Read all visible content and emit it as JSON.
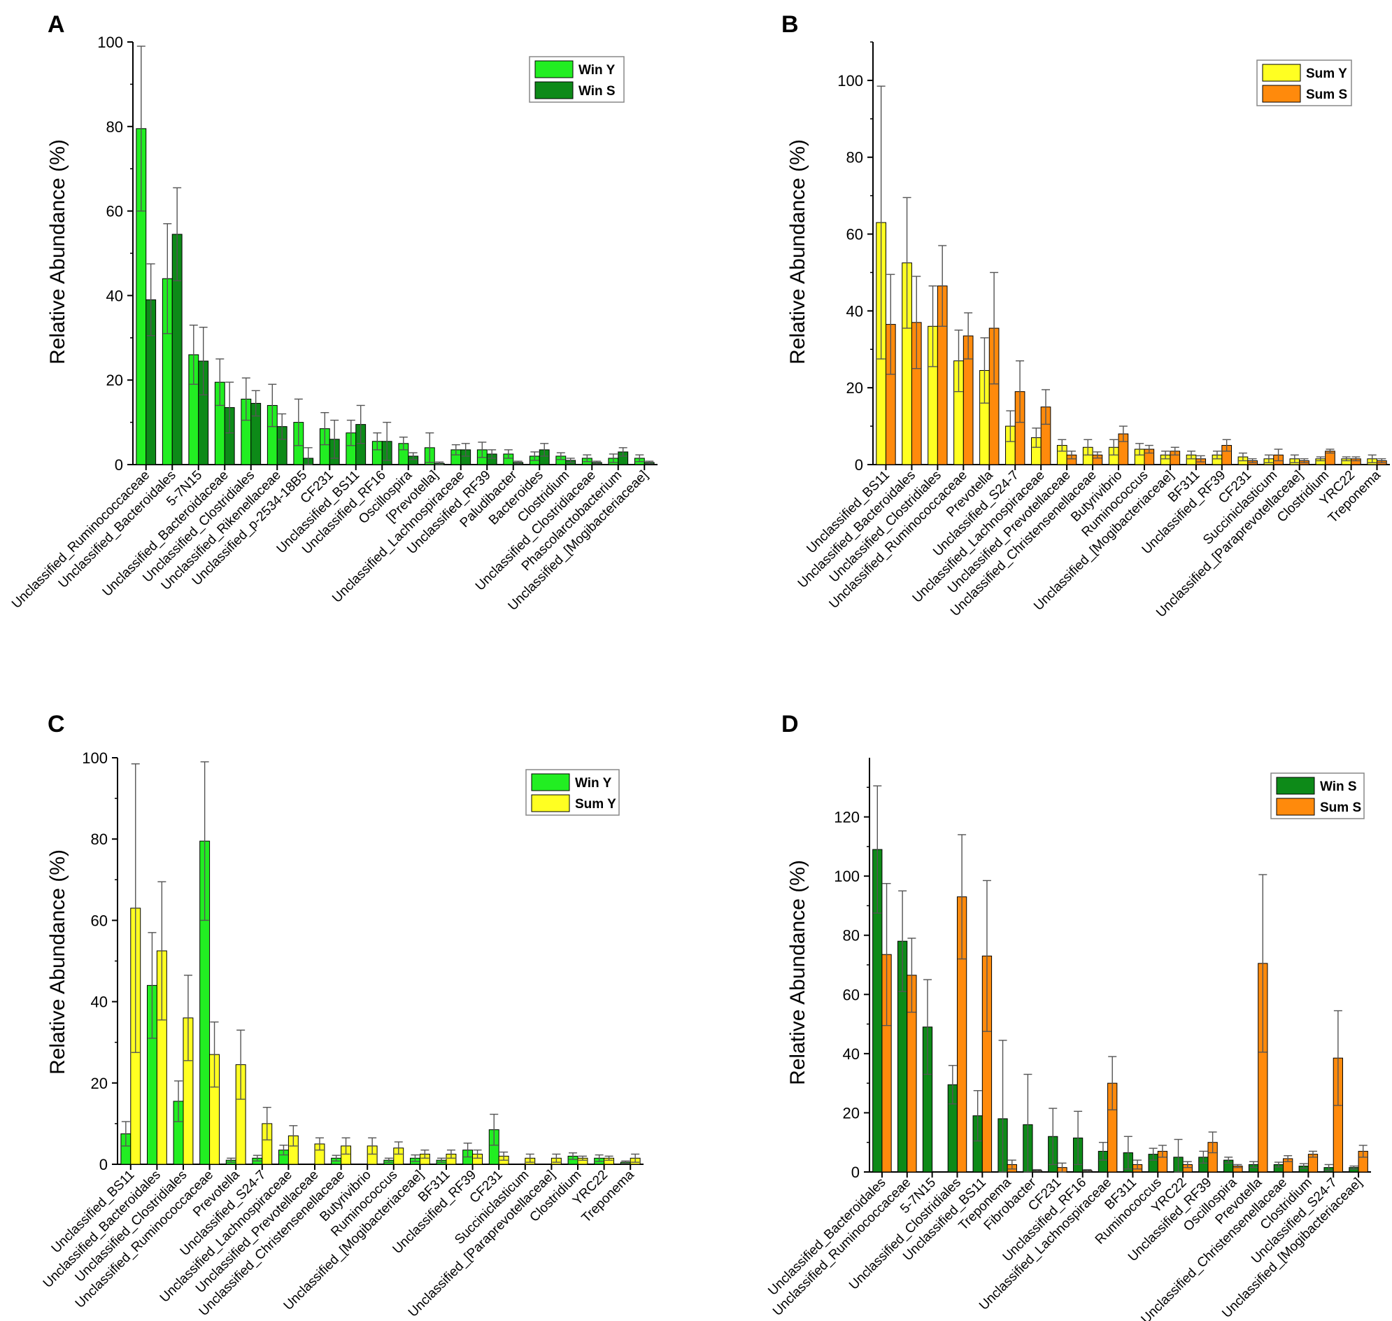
{
  "colors": {
    "win_y": "#22ee22",
    "win_s": "#0d8a18",
    "sum_y": "#ffff22",
    "sum_s": "#ff8a0c",
    "axis": "#000000",
    "error": "#555555"
  },
  "chart_data": [
    {
      "panel": "A",
      "type": "bar",
      "ylabel": "Relative Abundance (%)",
      "ylim": [
        0,
        100
      ],
      "yticks": [
        0,
        20,
        40,
        60,
        80,
        100
      ],
      "legend_position": "top-right",
      "categories": [
        "Unclassified_Ruminococcaceae",
        "Unclassified_Bacteroidales",
        "5-7N15",
        "Unclassified_Bacteroidaceae",
        "Unclassified_Clostridiales",
        "Unclassified_Rikenellaceae",
        "Unclassified_p-2534-18B5",
        "CF231",
        "Unclassified_BS11",
        "Unclassified_RF16",
        "Oscillospira",
        "[Prevotella]",
        "Unclassified_Lachnospiraceae",
        "Unclassified_RF39",
        "Paludibacter",
        "Bacteroides",
        "Clostridium",
        "Unclassified_Clostridiaceae",
        "Phascolarctobacterium",
        "Unclassified_[Mogibacteriaceae]"
      ],
      "series": [
        {
          "name": "Win Y",
          "color_key": "win_y",
          "values": [
            79.5,
            44,
            26,
            19.5,
            15.5,
            14,
            10,
            8.5,
            7.5,
            5.5,
            5,
            4,
            3.5,
            3.5,
            2.5,
            2,
            2,
            1.5,
            1.5,
            1.5
          ],
          "errors": [
            19.5,
            13,
            7,
            5.5,
            5,
            5,
            5.5,
            3.8,
            3,
            2,
            1.5,
            3.5,
            1.2,
            1.8,
            1,
            1,
            0.8,
            0.8,
            1,
            0.8
          ]
        },
        {
          "name": "Win S",
          "color_key": "win_s",
          "values": [
            39,
            54.5,
            24.5,
            13.5,
            14.5,
            9,
            1.5,
            6,
            9.5,
            5.5,
            2,
            0.3,
            3.5,
            2.5,
            0.5,
            3.5,
            1,
            0.5,
            3,
            0.5
          ],
          "errors": [
            8.5,
            11,
            8,
            6,
            3,
            3,
            2.5,
            4.5,
            4.5,
            4.5,
            0.8,
            0.3,
            1.5,
            1,
            0.3,
            1.5,
            0.5,
            0.3,
            1,
            0.3
          ]
        }
      ]
    },
    {
      "panel": "B",
      "type": "bar",
      "ylabel": "Relative Abundance (%)",
      "ylim": [
        0,
        110
      ],
      "yticks": [
        0,
        20,
        40,
        60,
        80,
        100
      ],
      "legend_position": "top-right",
      "categories": [
        "Unclassified_BS11",
        "Unclassified_Bacteroidales",
        "Unclassified_Clostridiales",
        "Unclassified_Ruminococcaceae",
        "Prevotella",
        "Unclassified_S24-7",
        "Unclassified_Lachnospiraceae",
        "Unclassified_Prevotellaceae",
        "Unclassified_Christensenellaceae",
        "Butyrivibrio",
        "Ruminococcus",
        "Unclassified_[Mogibacteriaceae]",
        "BF311",
        "Unclassified_RF39",
        "CF231",
        "Succiniclasticum",
        "Unclassified_[Paraprevotellaceae]",
        "Clostridium",
        "YRC22",
        "Treponema"
      ],
      "series": [
        {
          "name": "Sum Y",
          "color_key": "sum_y",
          "values": [
            63,
            52.5,
            36,
            27,
            24.5,
            10,
            7,
            5,
            4.5,
            4.5,
            4,
            2.5,
            2.5,
            2.5,
            2,
            1.5,
            1.5,
            1.5,
            1.5,
            1.5
          ],
          "errors": [
            35.5,
            17,
            10.5,
            8,
            8.5,
            4,
            2.5,
            1.5,
            2,
            2,
            1.5,
            1,
            1,
            1,
            1,
            1,
            1,
            0.5,
            0.5,
            1
          ]
        },
        {
          "name": "Sum S",
          "color_key": "sum_s",
          "values": [
            36.5,
            37,
            46.5,
            33.5,
            35.5,
            19,
            15,
            2.5,
            2.5,
            8,
            4,
            3.5,
            1.5,
            5,
            1,
            2.5,
            1,
            3.5,
            1.5,
            1
          ],
          "errors": [
            13,
            12,
            10.5,
            6,
            14.5,
            8,
            4.5,
            1,
            0.8,
            2,
            1,
            1,
            0.8,
            1.5,
            0.5,
            1.5,
            0.5,
            0.5,
            0.5,
            0.5
          ]
        }
      ]
    },
    {
      "panel": "C",
      "type": "bar",
      "ylabel": "Relative Abundance (%)",
      "ylim": [
        0,
        100
      ],
      "yticks": [
        0,
        20,
        40,
        60,
        80,
        100
      ],
      "legend_position": "top-right",
      "categories": [
        "Unclassified_BS11",
        "Unclassified_Bacteroidales",
        "Unclassified_Clostridiales",
        "Unclassified_Ruminococcaceae",
        "Prevotella",
        "Unclassified_S24-7",
        "Unclassified_Lachnospiraceae",
        "Unclassified_Prevotellaceae",
        "Unclassified_Christensenellaceae",
        "Butyrivibrio",
        "Ruminococcus",
        "Unclassified_[Mogibacteriaceae]",
        "BF311",
        "Unclassified_RF39",
        "CF231",
        "Succiniclasticum",
        "Unclassified_[Paraprevotellaceae]",
        "Clostridium",
        "YRC22",
        "Treponema"
      ],
      "series": [
        {
          "name": "Win  Y",
          "color_key": "win_y",
          "values": [
            7.5,
            44,
            15.5,
            79.5,
            1,
            1.5,
            3.5,
            0,
            1.5,
            0,
            1,
            1.5,
            1,
            3.5,
            8.5,
            0,
            0,
            2,
            1.5,
            0.5
          ],
          "errors": [
            3,
            13,
            5,
            19.5,
            0.5,
            0.7,
            1.2,
            0,
            0.7,
            0,
            0.5,
            0.8,
            0.5,
            1.7,
            3.8,
            0,
            0,
            0.8,
            0.8,
            0.3
          ]
        },
        {
          "name": "Sum Y",
          "color_key": "sum_y",
          "values": [
            63,
            52.5,
            36,
            27,
            24.5,
            10,
            7,
            5,
            4.5,
            4.5,
            4,
            2.5,
            2.5,
            2.5,
            2,
            1.5,
            1.5,
            1.5,
            1.5,
            1.5
          ],
          "errors": [
            35.5,
            17,
            10.5,
            8,
            8.5,
            4,
            2.5,
            1.5,
            2,
            2,
            1.5,
            1,
            1,
            1,
            1,
            1,
            1,
            0.5,
            0.5,
            1
          ]
        }
      ]
    },
    {
      "panel": "D",
      "type": "bar",
      "ylabel": "Relative Abundance (%)",
      "ylim": [
        0,
        140
      ],
      "yticks": [
        0,
        20,
        40,
        60,
        80,
        100,
        120
      ],
      "legend_position": "top-right",
      "categories": [
        "Unclassified_Bacteroidales",
        "Unclassified_Ruminococcaceae",
        "5-7N15",
        "Unclassified_Clostridiales",
        "Unclassified_BS11",
        "Treponema",
        "Fibrobacter",
        "CF231",
        "Unclassified_RF16",
        "Unclassified_Lachnospiraceae",
        "BF311",
        "Ruminococcus",
        "YRC22",
        "Unclassified_RF39",
        "Oscillospira",
        "Prevotella",
        "Unclassified_Christensenellaceae",
        "Clostridium",
        "Unclassified_S24-7",
        "Unclassified_[Mogibacteriaceae]"
      ],
      "series": [
        {
          "name": "Win  S",
          "color_key": "win_s",
          "values": [
            109,
            78,
            49,
            29.5,
            19,
            18,
            16,
            12,
            11.5,
            7,
            6.5,
            6,
            5,
            5,
            4,
            2.5,
            2.5,
            2,
            1.5,
            1.5
          ],
          "errors": [
            21.5,
            17,
            16,
            6.5,
            8.5,
            26.5,
            17,
            9.5,
            9,
            3,
            5.5,
            2,
            6,
            2,
            1,
            1,
            0.8,
            0.8,
            1,
            0.5
          ]
        },
        {
          "name": "Sum S",
          "color_key": "sum_s",
          "values": [
            73.5,
            66.5,
            0,
            93,
            73,
            2.5,
            0.5,
            1.5,
            0.5,
            30,
            2.5,
            7,
            2.5,
            10,
            2,
            70.5,
            4.5,
            6,
            38.5,
            7
          ],
          "errors": [
            24,
            12.5,
            0,
            21,
            25.5,
            1.5,
            0.3,
            1.5,
            0.3,
            9,
            1.5,
            2,
            1,
            3.5,
            0.5,
            30,
            1,
            1,
            16,
            2
          ]
        }
      ]
    }
  ]
}
